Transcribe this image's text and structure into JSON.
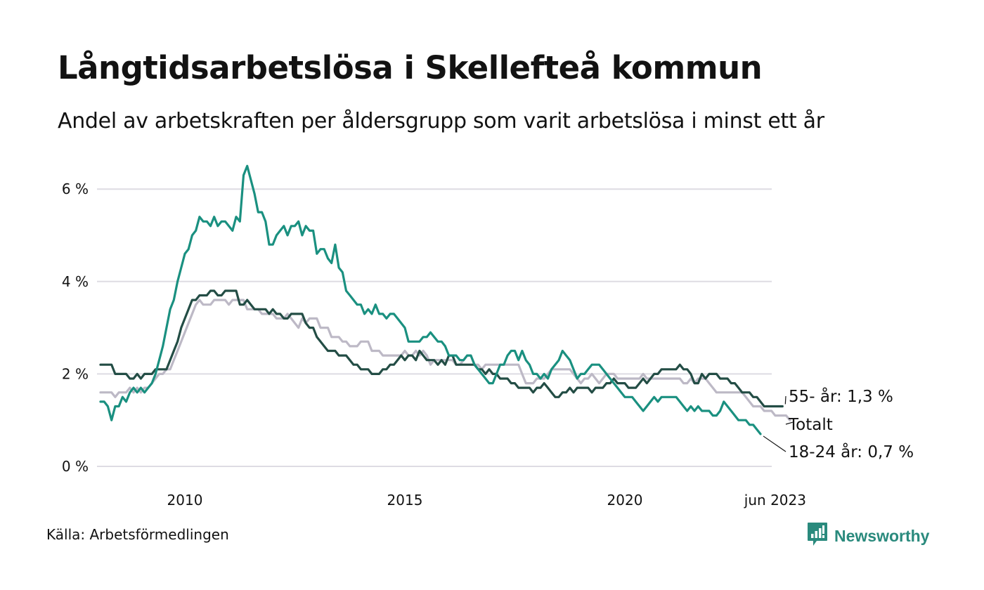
{
  "header": {
    "title": "Långtidsarbetslösa i Skellefteå kommun",
    "subtitle": "Andel av arbetskraften per åldersgrupp som varit arbetslösa i minst ett år"
  },
  "footer": {
    "source": "Källa: Arbetsförmedlingen",
    "brand": "Newsworthy",
    "brand_icon": "bar-chart-speech-bubble-icon",
    "brand_color": "#2a8a7d"
  },
  "chart_data": {
    "type": "line",
    "title": "Långtidsarbetslösa i Skellefteå kommun",
    "subtitle": "Andel av arbetskraften per åldersgrupp som varit arbetslösa i minst ett år",
    "xlabel": "",
    "ylabel": "",
    "x_start": "2008-02",
    "x_end": "2023-06",
    "x_frequency": "monthly",
    "x_ticks": [
      {
        "label": "2010",
        "date": "2010-01"
      },
      {
        "label": "2015",
        "date": "2015-01"
      },
      {
        "label": "2020",
        "date": "2020-01"
      },
      {
        "label": "jun 2023",
        "date": "2023-06"
      }
    ],
    "y_ticks": [
      {
        "value": 0,
        "label": "0 %"
      },
      {
        "value": 2,
        "label": "2 %"
      },
      {
        "value": 4,
        "label": "4 %"
      },
      {
        "value": 6,
        "label": "6 %"
      }
    ],
    "ylim": [
      0,
      6.6
    ],
    "grid": "horizontal",
    "unit": "%",
    "series": [
      {
        "name": "Totalt",
        "end_label": "Totalt",
        "color": "#bdb9c6",
        "values": [
          1.6,
          1.6,
          1.6,
          1.6,
          1.5,
          1.6,
          1.6,
          1.6,
          1.7,
          1.6,
          1.7,
          1.6,
          1.7,
          1.7,
          1.8,
          1.9,
          2.0,
          2.0,
          2.1,
          2.1,
          2.3,
          2.5,
          2.7,
          2.9,
          3.1,
          3.3,
          3.5,
          3.6,
          3.5,
          3.5,
          3.5,
          3.6,
          3.6,
          3.6,
          3.6,
          3.5,
          3.6,
          3.6,
          3.6,
          3.6,
          3.4,
          3.4,
          3.4,
          3.4,
          3.3,
          3.3,
          3.3,
          3.3,
          3.2,
          3.2,
          3.2,
          3.3,
          3.2,
          3.1,
          3.0,
          3.2,
          3.1,
          3.2,
          3.2,
          3.2,
          3.0,
          3.0,
          3.0,
          2.8,
          2.8,
          2.8,
          2.7,
          2.7,
          2.6,
          2.6,
          2.6,
          2.7,
          2.7,
          2.7,
          2.5,
          2.5,
          2.5,
          2.4,
          2.4,
          2.4,
          2.4,
          2.4,
          2.4,
          2.5,
          2.4,
          2.4,
          2.5,
          2.4,
          2.5,
          2.4,
          2.2,
          2.3,
          2.3,
          2.3,
          2.3,
          2.3,
          2.3,
          2.2,
          2.2,
          2.3,
          2.4,
          2.4,
          2.2,
          2.2,
          2.1,
          2.2,
          2.2,
          2.2,
          2.2,
          2.2,
          2.2,
          2.2,
          2.2,
          2.2,
          2.2,
          2.0,
          1.8,
          1.8,
          1.8,
          1.9,
          1.9,
          1.9,
          2.0,
          2.1,
          2.1,
          2.1,
          2.1,
          2.1,
          2.1,
          2.0,
          1.9,
          1.8,
          1.9,
          1.9,
          2.0,
          1.9,
          1.8,
          1.9,
          2.0,
          2.0,
          2.0,
          1.9,
          1.9,
          1.9,
          1.9,
          1.9,
          1.9,
          1.9,
          2.0,
          1.9,
          1.9,
          1.9,
          1.9,
          1.9,
          1.9,
          1.9,
          1.9,
          1.9,
          1.9,
          1.8,
          1.8,
          1.9,
          1.8,
          1.9,
          1.9,
          1.9,
          1.8,
          1.7,
          1.6,
          1.6,
          1.6,
          1.6,
          1.6,
          1.6,
          1.6,
          1.6,
          1.5,
          1.4,
          1.3,
          1.3,
          1.3,
          1.2,
          1.2,
          1.2,
          1.1,
          1.1,
          1.1,
          1.1,
          1.0
        ]
      },
      {
        "name": "55- år",
        "end_label": "55- år: 1,3 %",
        "color": "#234d45",
        "values": [
          2.2,
          2.2,
          2.2,
          2.2,
          2.0,
          2.0,
          2.0,
          2.0,
          1.9,
          1.9,
          2.0,
          1.9,
          2.0,
          2.0,
          2.0,
          2.1,
          2.1,
          2.1,
          2.1,
          2.3,
          2.5,
          2.7,
          3.0,
          3.2,
          3.4,
          3.6,
          3.6,
          3.7,
          3.7,
          3.7,
          3.8,
          3.8,
          3.7,
          3.7,
          3.8,
          3.8,
          3.8,
          3.8,
          3.5,
          3.5,
          3.6,
          3.5,
          3.4,
          3.4,
          3.4,
          3.4,
          3.3,
          3.4,
          3.3,
          3.3,
          3.2,
          3.2,
          3.3,
          3.3,
          3.3,
          3.3,
          3.1,
          3.0,
          3.0,
          2.8,
          2.7,
          2.6,
          2.5,
          2.5,
          2.5,
          2.4,
          2.4,
          2.4,
          2.3,
          2.2,
          2.2,
          2.1,
          2.1,
          2.1,
          2.0,
          2.0,
          2.0,
          2.1,
          2.1,
          2.2,
          2.2,
          2.3,
          2.4,
          2.3,
          2.4,
          2.4,
          2.3,
          2.5,
          2.4,
          2.3,
          2.3,
          2.3,
          2.2,
          2.3,
          2.2,
          2.4,
          2.4,
          2.2,
          2.2,
          2.2,
          2.2,
          2.2,
          2.2,
          2.1,
          2.1,
          2.0,
          2.1,
          2.0,
          2.0,
          1.9,
          1.9,
          1.9,
          1.8,
          1.8,
          1.7,
          1.7,
          1.7,
          1.7,
          1.6,
          1.7,
          1.7,
          1.8,
          1.7,
          1.6,
          1.5,
          1.5,
          1.6,
          1.6,
          1.7,
          1.6,
          1.7,
          1.7,
          1.7,
          1.7,
          1.6,
          1.7,
          1.7,
          1.7,
          1.8,
          1.8,
          1.9,
          1.8,
          1.8,
          1.8,
          1.7,
          1.7,
          1.7,
          1.8,
          1.9,
          1.8,
          1.9,
          2.0,
          2.0,
          2.1,
          2.1,
          2.1,
          2.1,
          2.1,
          2.2,
          2.1,
          2.1,
          2.0,
          1.8,
          1.8,
          2.0,
          1.9,
          2.0,
          2.0,
          2.0,
          1.9,
          1.9,
          1.9,
          1.8,
          1.8,
          1.7,
          1.6,
          1.6,
          1.6,
          1.5,
          1.5,
          1.4,
          1.3,
          1.3,
          1.3,
          1.3,
          1.3,
          1.3
        ]
      },
      {
        "name": "18-24 år",
        "end_label": "18-24 år: 0,7 %",
        "color": "#1a9080",
        "values": [
          1.4,
          1.4,
          1.3,
          1.0,
          1.3,
          1.3,
          1.5,
          1.4,
          1.6,
          1.7,
          1.6,
          1.7,
          1.6,
          1.7,
          1.8,
          2.0,
          2.3,
          2.6,
          3.0,
          3.4,
          3.6,
          4.0,
          4.3,
          4.6,
          4.7,
          5.0,
          5.1,
          5.4,
          5.3,
          5.3,
          5.2,
          5.4,
          5.2,
          5.3,
          5.3,
          5.2,
          5.1,
          5.4,
          5.3,
          6.3,
          6.5,
          6.2,
          5.9,
          5.5,
          5.5,
          5.3,
          4.8,
          4.8,
          5.0,
          5.1,
          5.2,
          5.0,
          5.2,
          5.2,
          5.3,
          5.0,
          5.2,
          5.1,
          5.1,
          4.6,
          4.7,
          4.7,
          4.5,
          4.4,
          4.8,
          4.3,
          4.2,
          3.8,
          3.7,
          3.6,
          3.5,
          3.5,
          3.3,
          3.4,
          3.3,
          3.5,
          3.3,
          3.3,
          3.2,
          3.3,
          3.3,
          3.2,
          3.1,
          3.0,
          2.7,
          2.7,
          2.7,
          2.7,
          2.8,
          2.8,
          2.9,
          2.8,
          2.7,
          2.7,
          2.6,
          2.4,
          2.4,
          2.4,
          2.3,
          2.3,
          2.4,
          2.4,
          2.2,
          2.1,
          2.0,
          1.9,
          1.8,
          1.8,
          2.0,
          2.2,
          2.2,
          2.4,
          2.5,
          2.5,
          2.3,
          2.5,
          2.3,
          2.2,
          2.0,
          2.0,
          1.9,
          2.0,
          1.9,
          2.1,
          2.2,
          2.3,
          2.5,
          2.4,
          2.3,
          2.1,
          1.9,
          2.0,
          2.0,
          2.1,
          2.2,
          2.2,
          2.2,
          2.1,
          2.0,
          1.9,
          1.8,
          1.7,
          1.6,
          1.5,
          1.5,
          1.5,
          1.4,
          1.3,
          1.2,
          1.3,
          1.4,
          1.5,
          1.4,
          1.5,
          1.5,
          1.5,
          1.5,
          1.5,
          1.4,
          1.3,
          1.2,
          1.3,
          1.2,
          1.3,
          1.2,
          1.2,
          1.2,
          1.1,
          1.1,
          1.2,
          1.4,
          1.3,
          1.2,
          1.1,
          1.0,
          1.0,
          1.0,
          0.9,
          0.9,
          0.8,
          0.7
        ]
      }
    ]
  }
}
